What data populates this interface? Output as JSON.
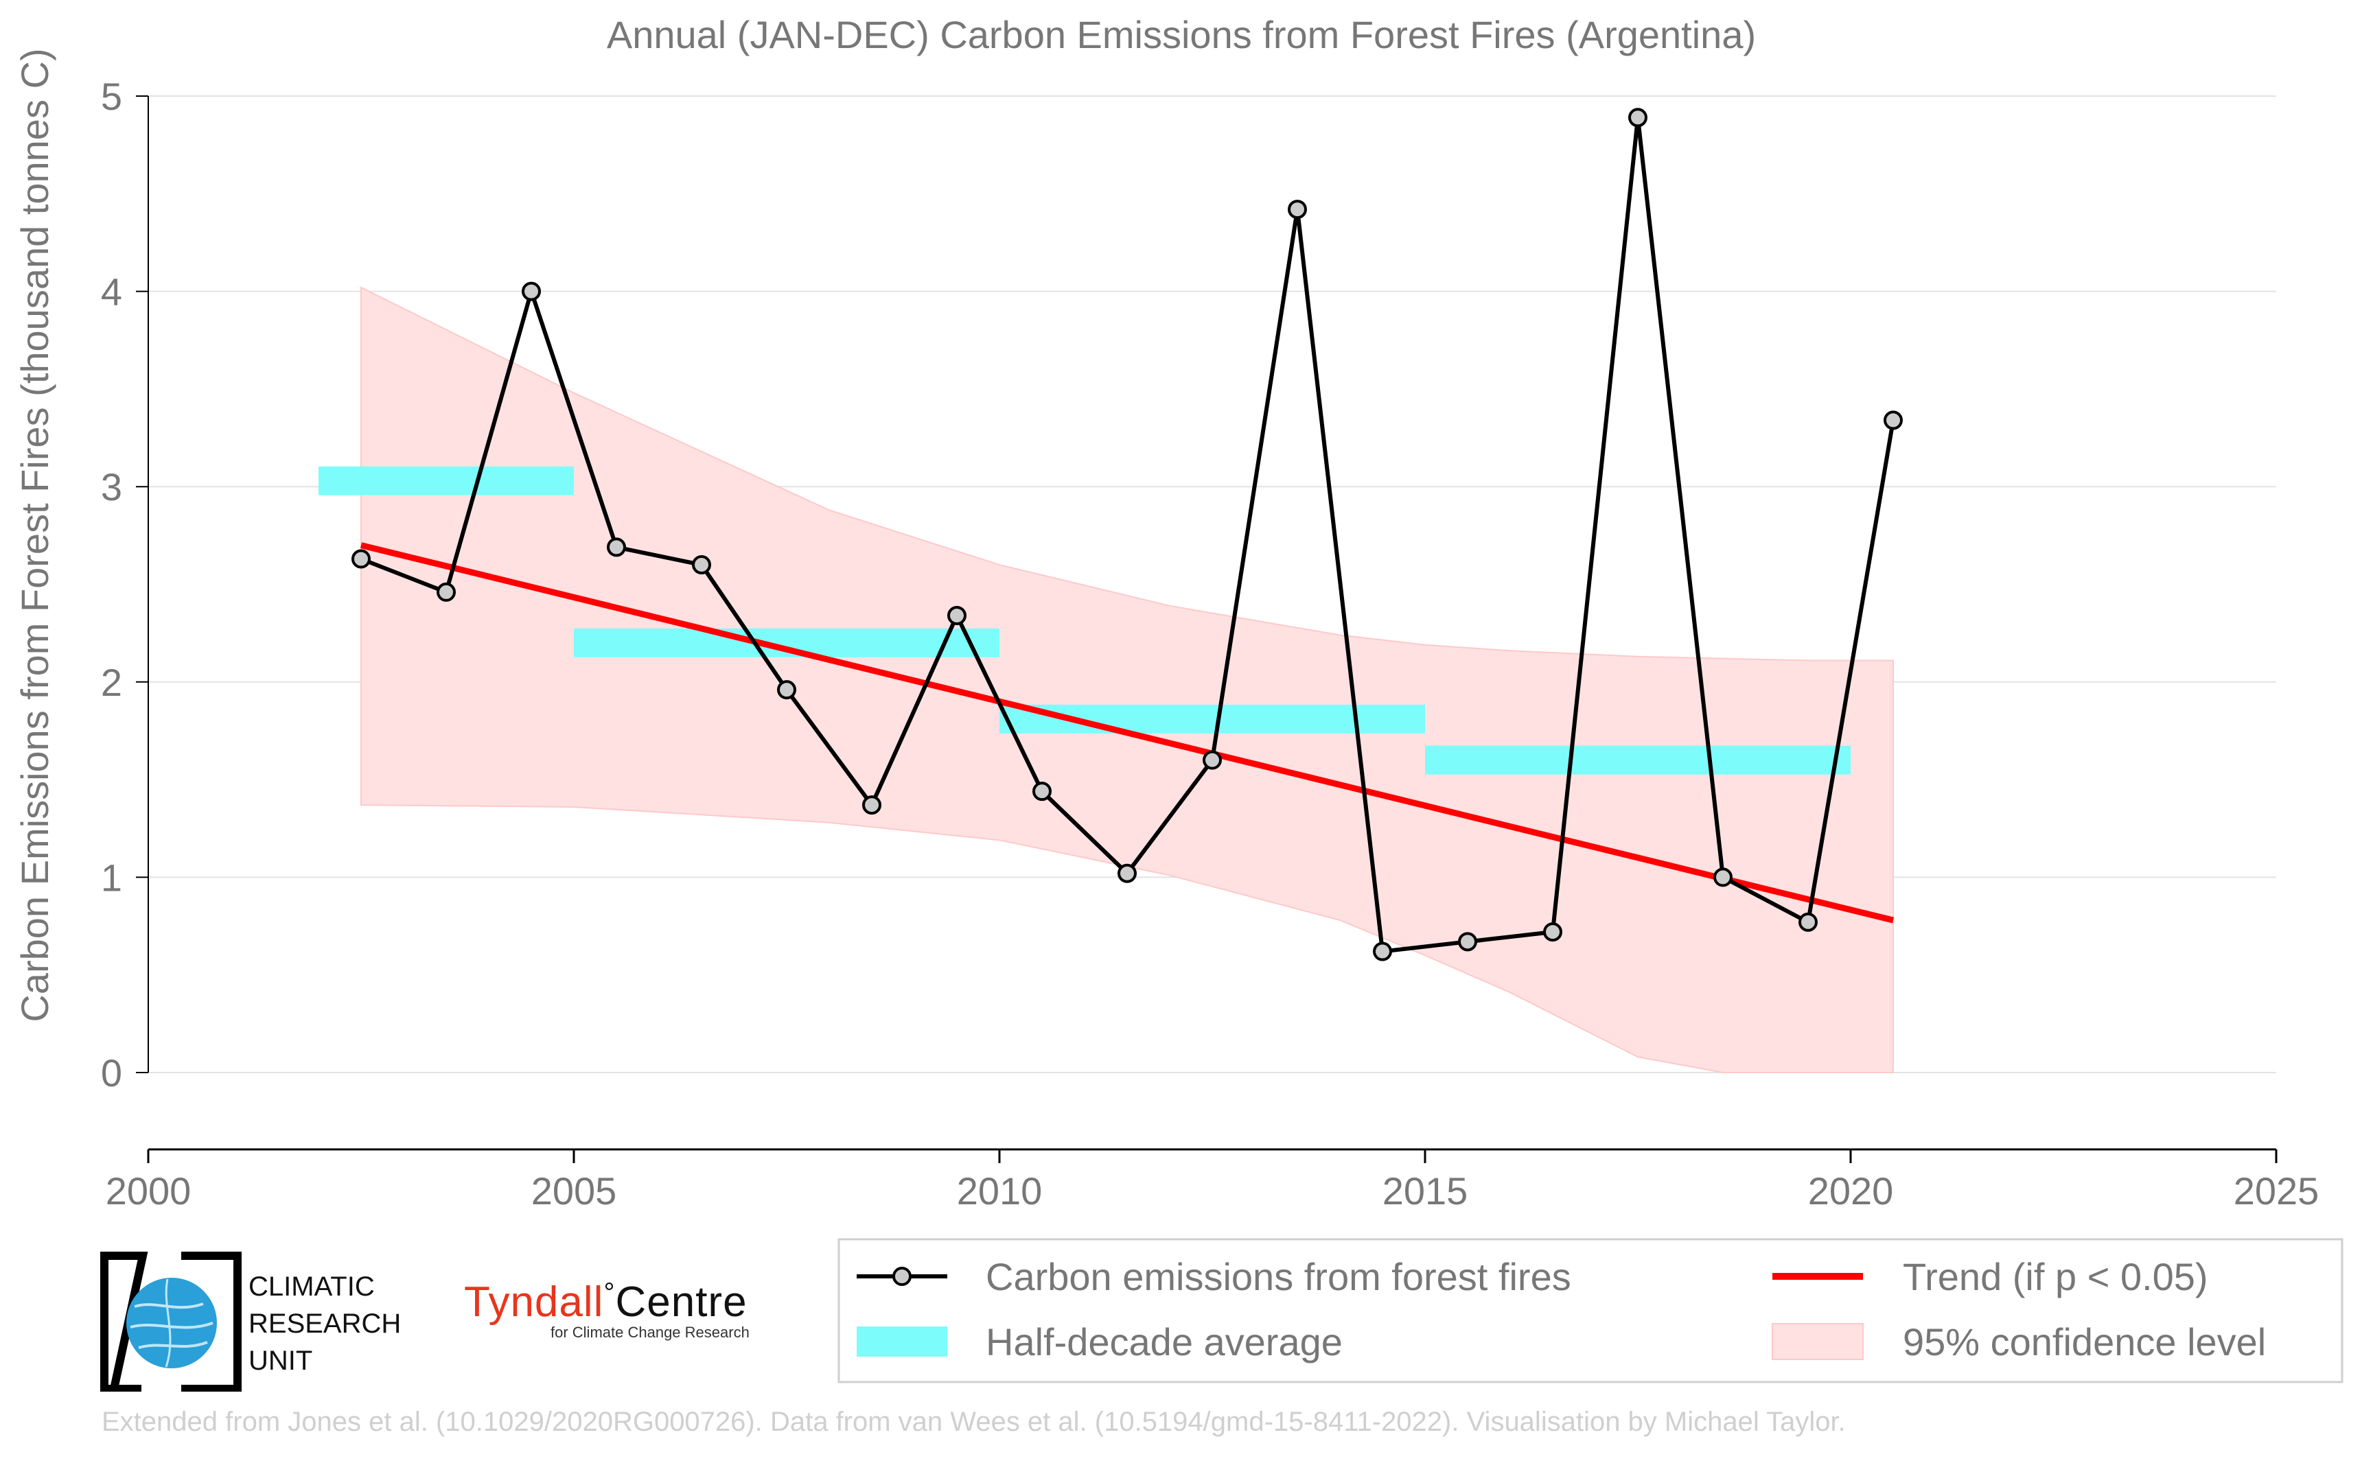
{
  "chart_data": {
    "type": "line",
    "title": "Annual (JAN-DEC) Carbon Emissions from Forest Fires (Argentina)",
    "xlabel": "",
    "ylabel": "Carbon Emissions from Forest Fires (thousand tonnes C)",
    "xlim": [
      2000,
      2025
    ],
    "ylim": [
      0,
      5
    ],
    "xticks": [
      2000,
      2005,
      2010,
      2015,
      2020,
      2025
    ],
    "yticks": [
      0,
      1,
      2,
      3,
      4,
      5
    ],
    "grid": "horizontal",
    "legend_position": "bottom-right",
    "series": [
      {
        "name": "Carbon emissions from forest fires",
        "kind": "line-with-markers",
        "color": "#000000",
        "marker_fill": "#cccccc",
        "x": [
          2002.5,
          2003.5,
          2004.5,
          2005.5,
          2006.5,
          2007.5,
          2008.5,
          2009.5,
          2010.5,
          2011.5,
          2012.5,
          2013.5,
          2014.5,
          2015.5,
          2016.5,
          2017.5,
          2018.5,
          2019.5,
          2020.5
        ],
        "y": [
          2.63,
          2.46,
          4.0,
          2.69,
          2.6,
          1.96,
          1.37,
          2.34,
          1.44,
          1.02,
          1.6,
          4.42,
          0.62,
          0.67,
          0.72,
          4.89,
          1.0,
          0.77,
          3.34
        ]
      },
      {
        "name": "Half-decade average",
        "kind": "step-bars",
        "color": "#7dfcfc",
        "segments": [
          {
            "x0": 2002.0,
            "x1": 2005.0,
            "y": 3.03
          },
          {
            "x0": 2005.0,
            "x1": 2010.0,
            "y": 2.2
          },
          {
            "x0": 2010.0,
            "x1": 2015.0,
            "y": 1.81
          },
          {
            "x0": 2015.0,
            "x1": 2020.0,
            "y": 1.6
          }
        ]
      },
      {
        "name": "Trend (if p < 0.05)",
        "kind": "line",
        "color": "#ff0000",
        "x": [
          2002.5,
          2020.5
        ],
        "y": [
          2.7,
          0.78
        ]
      },
      {
        "name": "95% confidence level",
        "kind": "band",
        "color": "#ffe1e1",
        "x": [
          2002.5,
          2005,
          2008,
          2010,
          2012,
          2014,
          2015,
          2016,
          2017.5,
          2018.5,
          2019.5,
          2020.5
        ],
        "upper": [
          4.02,
          3.48,
          2.88,
          2.6,
          2.39,
          2.24,
          2.19,
          2.16,
          2.13,
          2.12,
          2.11,
          2.11
        ],
        "lower": [
          1.37,
          1.36,
          1.28,
          1.19,
          1.01,
          0.78,
          0.6,
          0.41,
          0.08,
          0.0,
          0.0,
          0.0
        ]
      }
    ]
  },
  "logos": {
    "cru_lines": [
      "CLIMATIC",
      "RESEARCH",
      "UNIT"
    ],
    "tyndall_name": "Tyndall",
    "tyndall_degree": "°",
    "tyndall_centre": "Centre",
    "tyndall_sub": "for Climate Change Research"
  },
  "footer": "Extended from Jones et al. (10.1029/2020RG000726). Data from van Wees et al. (10.5194/gmd-15-8411-2022). Visualisation by Michael Taylor."
}
